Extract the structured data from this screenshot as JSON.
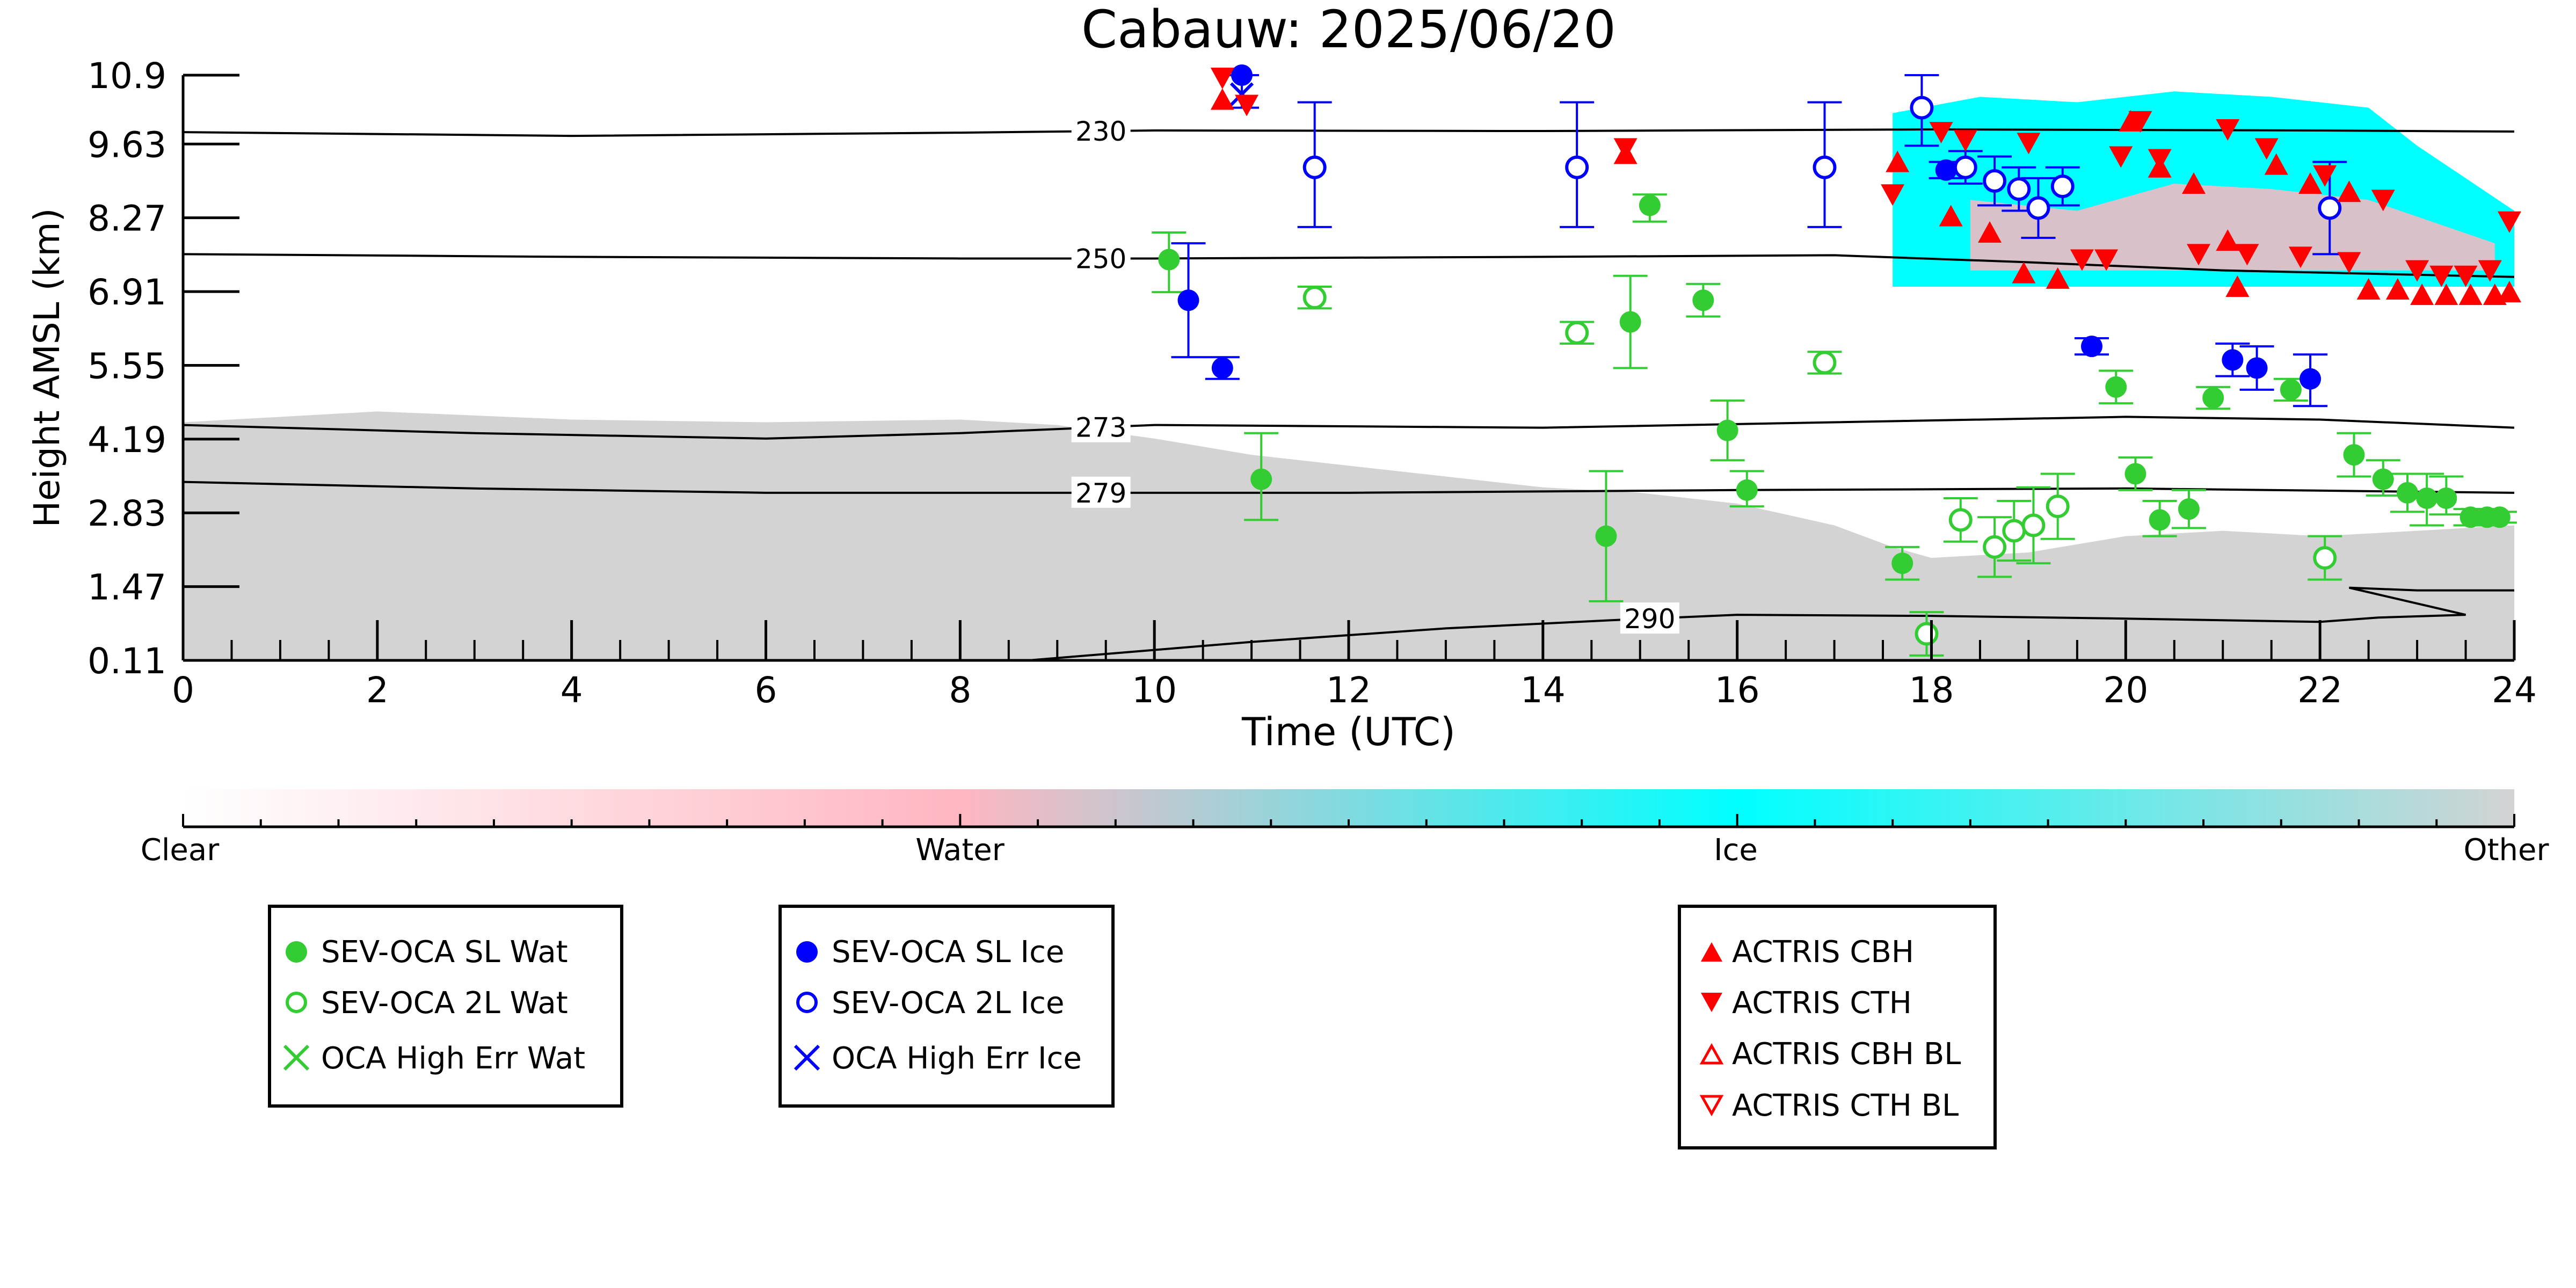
{
  "chart_data": {
    "type": "scatter",
    "title": "Cabauw: 2025/06/20",
    "xlabel": "Time (UTC)",
    "ylabel": "Height AMSL (km)",
    "xlim": [
      0,
      24
    ],
    "ylim": [
      0.11,
      10.9
    ],
    "x_ticks": [
      "0",
      "2",
      "4",
      "6",
      "8",
      "10",
      "12",
      "14",
      "16",
      "18",
      "20",
      "22",
      "24"
    ],
    "y_ticks": [
      "0.11",
      "1.47",
      "2.83",
      "4.19",
      "5.55",
      "6.91",
      "8.27",
      "9.63",
      "10.9"
    ],
    "isotherms": [
      {
        "label": "230",
        "label_x": 9.45,
        "points": [
          [
            0,
            9.85
          ],
          [
            4,
            9.78
          ],
          [
            8,
            9.84
          ],
          [
            10,
            9.88
          ],
          [
            14,
            9.87
          ],
          [
            18,
            9.9
          ],
          [
            22,
            9.88
          ],
          [
            24,
            9.86
          ]
        ]
      },
      {
        "label": "250",
        "label_x": 9.45,
        "points": [
          [
            0,
            7.6
          ],
          [
            4,
            7.55
          ],
          [
            8,
            7.52
          ],
          [
            10,
            7.52
          ],
          [
            14,
            7.55
          ],
          [
            17,
            7.58
          ],
          [
            19,
            7.45
          ],
          [
            21,
            7.3
          ],
          [
            24,
            7.18
          ]
        ]
      },
      {
        "label": "273",
        "label_x": 9.45,
        "points": [
          [
            0,
            4.45
          ],
          [
            3,
            4.3
          ],
          [
            6,
            4.2
          ],
          [
            8,
            4.3
          ],
          [
            10,
            4.45
          ],
          [
            14,
            4.4
          ],
          [
            17,
            4.5
          ],
          [
            20,
            4.6
          ],
          [
            22,
            4.55
          ],
          [
            24,
            4.4
          ]
        ]
      },
      {
        "label": "279",
        "label_x": 9.45,
        "points": [
          [
            0,
            3.4
          ],
          [
            3,
            3.28
          ],
          [
            6,
            3.2
          ],
          [
            9,
            3.2
          ],
          [
            12,
            3.2
          ],
          [
            16,
            3.25
          ],
          [
            20,
            3.28
          ],
          [
            24,
            3.2
          ]
        ]
      },
      {
        "label": "290",
        "label_x": 15.1,
        "points": [
          [
            8.7,
            0.11
          ],
          [
            11,
            0.45
          ],
          [
            13,
            0.7
          ],
          [
            14.7,
            0.85
          ],
          [
            16,
            0.95
          ],
          [
            18,
            0.93
          ],
          [
            20,
            0.88
          ],
          [
            22,
            0.82
          ],
          [
            22.6,
            0.9
          ],
          [
            23.5,
            0.95
          ],
          [
            22.3,
            1.45
          ],
          [
            23,
            1.4
          ],
          [
            24,
            1.4
          ]
        ]
      }
    ],
    "series": [
      {
        "name": "SEV-OCA SL Wat",
        "marker": "circle-filled",
        "color": "#33cc33",
        "points": [
          {
            "x": 10.15,
            "y": 7.5,
            "lo": 6.9,
            "hi": 8.0
          },
          {
            "x": 11.1,
            "y": 3.45,
            "lo": 2.7,
            "hi": 4.3
          },
          {
            "x": 14.65,
            "y": 2.4,
            "lo": 1.2,
            "hi": 3.6
          },
          {
            "x": 14.9,
            "y": 6.35,
            "lo": 5.5,
            "hi": 7.2
          },
          {
            "x": 15.1,
            "y": 8.5,
            "lo": 8.2,
            "hi": 8.7
          },
          {
            "x": 15.65,
            "y": 6.75,
            "lo": 6.45,
            "hi": 7.05
          },
          {
            "x": 15.9,
            "y": 4.35,
            "lo": 3.8,
            "hi": 4.9
          },
          {
            "x": 16.1,
            "y": 3.25,
            "lo": 2.95,
            "hi": 3.6
          },
          {
            "x": 17.7,
            "y": 1.9,
            "lo": 1.6,
            "hi": 2.2
          },
          {
            "x": 19.9,
            "y": 5.15,
            "lo": 4.85,
            "hi": 5.45
          },
          {
            "x": 20.1,
            "y": 3.55,
            "lo": 3.25,
            "hi": 3.85
          },
          {
            "x": 20.35,
            "y": 2.7,
            "lo": 2.4,
            "hi": 3.05
          },
          {
            "x": 20.65,
            "y": 2.9,
            "lo": 2.55,
            "hi": 3.25
          },
          {
            "x": 20.9,
            "y": 4.95,
            "lo": 4.75,
            "hi": 5.15
          },
          {
            "x": 21.7,
            "y": 5.1,
            "lo": 4.9,
            "hi": 5.3
          },
          {
            "x": 22.35,
            "y": 3.9,
            "lo": 3.5,
            "hi": 4.3
          },
          {
            "x": 22.65,
            "y": 3.45,
            "lo": 3.15,
            "hi": 3.8
          },
          {
            "x": 22.9,
            "y": 3.2,
            "lo": 2.85,
            "hi": 3.55
          },
          {
            "x": 23.1,
            "y": 3.1,
            "lo": 2.6,
            "hi": 3.55
          },
          {
            "x": 23.3,
            "y": 3.1,
            "lo": 2.8,
            "hi": 3.5
          },
          {
            "x": 23.55,
            "y": 2.75,
            "lo": 2.6,
            "hi": 2.9
          },
          {
            "x": 23.72,
            "y": 2.75,
            "lo": 2.6,
            "hi": 2.9
          },
          {
            "x": 23.85,
            "y": 2.75,
            "lo": 2.65,
            "hi": 2.85
          }
        ]
      },
      {
        "name": "SEV-OCA 2L Wat",
        "marker": "circle-open",
        "color": "#33cc33",
        "points": [
          {
            "x": 11.65,
            "y": 6.8,
            "lo": 6.6,
            "hi": 7.0
          },
          {
            "x": 14.35,
            "y": 6.15,
            "lo": 5.95,
            "hi": 6.35
          },
          {
            "x": 16.9,
            "y": 5.6,
            "lo": 5.4,
            "hi": 5.8
          },
          {
            "x": 17.95,
            "y": 0.6,
            "lo": 0.2,
            "hi": 1.0
          },
          {
            "x": 18.3,
            "y": 2.7,
            "lo": 2.3,
            "hi": 3.1
          },
          {
            "x": 18.65,
            "y": 2.2,
            "lo": 1.65,
            "hi": 2.75
          },
          {
            "x": 18.85,
            "y": 2.5,
            "lo": 1.95,
            "hi": 3.05
          },
          {
            "x": 19.05,
            "y": 2.6,
            "lo": 1.9,
            "hi": 3.3
          },
          {
            "x": 19.3,
            "y": 2.95,
            "lo": 2.35,
            "hi": 3.55
          },
          {
            "x": 22.05,
            "y": 2.0,
            "lo": 1.6,
            "hi": 2.4
          }
        ]
      },
      {
        "name": "OCA High Err Wat",
        "marker": "x",
        "color": "#33cc33",
        "points": []
      },
      {
        "name": "SEV-OCA SL Ice",
        "marker": "circle-filled",
        "color": "#0000ff",
        "points": [
          {
            "x": 10.35,
            "y": 6.75,
            "lo": 5.7,
            "hi": 7.8
          },
          {
            "x": 10.7,
            "y": 5.5,
            "lo": 5.3,
            "hi": 5.7
          },
          {
            "x": 10.9,
            "y": 10.9,
            "lo": 10.3,
            "hi": 10.9
          },
          {
            "x": 18.15,
            "y": 9.15,
            "lo": 9.0,
            "hi": 9.3
          },
          {
            "x": 19.65,
            "y": 5.9,
            "lo": 5.75,
            "hi": 6.05
          },
          {
            "x": 21.1,
            "y": 5.65,
            "lo": 5.35,
            "hi": 5.95
          },
          {
            "x": 21.35,
            "y": 5.5,
            "lo": 5.1,
            "hi": 5.9
          },
          {
            "x": 21.9,
            "y": 5.3,
            "lo": 4.8,
            "hi": 5.75
          }
        ]
      },
      {
        "name": "SEV-OCA 2L Ice",
        "marker": "circle-open",
        "color": "#0000ff",
        "points": [
          {
            "x": 11.65,
            "y": 9.2,
            "lo": 8.1,
            "hi": 10.4
          },
          {
            "x": 14.35,
            "y": 9.2,
            "lo": 8.1,
            "hi": 10.4
          },
          {
            "x": 16.9,
            "y": 9.2,
            "lo": 8.1,
            "hi": 10.4
          },
          {
            "x": 17.9,
            "y": 10.3,
            "lo": 9.6,
            "hi": 10.9
          },
          {
            "x": 18.35,
            "y": 9.2,
            "lo": 8.9,
            "hi": 9.5
          },
          {
            "x": 18.65,
            "y": 8.95,
            "lo": 8.5,
            "hi": 9.4
          },
          {
            "x": 18.9,
            "y": 8.8,
            "lo": 8.4,
            "hi": 9.2
          },
          {
            "x": 19.1,
            "y": 8.45,
            "lo": 7.9,
            "hi": 9.0
          },
          {
            "x": 19.35,
            "y": 8.85,
            "lo": 8.5,
            "hi": 9.2
          },
          {
            "x": 22.1,
            "y": 8.45,
            "lo": 7.6,
            "hi": 9.3
          }
        ]
      },
      {
        "name": "OCA High Err Ice",
        "marker": "x",
        "color": "#0000ff",
        "points": [
          {
            "x": 10.9,
            "y": 10.55
          }
        ]
      },
      {
        "name": "ACTRIS CBH",
        "marker": "triangle-up-filled",
        "color": "#ff0000",
        "points": [
          {
            "x": 10.7,
            "y": 10.45
          },
          {
            "x": 14.85,
            "y": 9.45
          },
          {
            "x": 17.65,
            "y": 9.3
          },
          {
            "x": 18.2,
            "y": 8.3
          },
          {
            "x": 18.6,
            "y": 8.0
          },
          {
            "x": 18.95,
            "y": 7.25
          },
          {
            "x": 19.3,
            "y": 7.15
          },
          {
            "x": 20.05,
            "y": 10.05
          },
          {
            "x": 20.35,
            "y": 9.2
          },
          {
            "x": 20.7,
            "y": 8.9
          },
          {
            "x": 21.05,
            "y": 7.85
          },
          {
            "x": 21.15,
            "y": 7.0
          },
          {
            "x": 21.55,
            "y": 9.25
          },
          {
            "x": 21.9,
            "y": 8.9
          },
          {
            "x": 22.3,
            "y": 8.75
          },
          {
            "x": 22.5,
            "y": 6.95
          },
          {
            "x": 22.8,
            "y": 6.95
          },
          {
            "x": 23.05,
            "y": 6.85
          },
          {
            "x": 23.3,
            "y": 6.85
          },
          {
            "x": 23.55,
            "y": 6.85
          },
          {
            "x": 23.8,
            "y": 6.85
          },
          {
            "x": 23.95,
            "y": 6.9
          }
        ]
      },
      {
        "name": "ACTRIS CTH",
        "marker": "triangle-down-filled",
        "color": "#ff0000",
        "points": [
          {
            "x": 10.7,
            "y": 10.85
          },
          {
            "x": 10.95,
            "y": 10.35
          },
          {
            "x": 14.85,
            "y": 9.55
          },
          {
            "x": 17.6,
            "y": 8.7
          },
          {
            "x": 18.1,
            "y": 9.85
          },
          {
            "x": 18.35,
            "y": 9.7
          },
          {
            "x": 19.0,
            "y": 9.65
          },
          {
            "x": 19.55,
            "y": 7.5
          },
          {
            "x": 19.8,
            "y": 7.5
          },
          {
            "x": 19.95,
            "y": 9.4
          },
          {
            "x": 20.15,
            "y": 10.05
          },
          {
            "x": 20.35,
            "y": 9.35
          },
          {
            "x": 20.75,
            "y": 7.6
          },
          {
            "x": 21.05,
            "y": 9.9
          },
          {
            "x": 21.25,
            "y": 7.6
          },
          {
            "x": 21.45,
            "y": 9.55
          },
          {
            "x": 21.8,
            "y": 7.55
          },
          {
            "x": 22.05,
            "y": 9.05
          },
          {
            "x": 22.3,
            "y": 7.45
          },
          {
            "x": 22.65,
            "y": 8.6
          },
          {
            "x": 23.0,
            "y": 7.3
          },
          {
            "x": 23.25,
            "y": 7.2
          },
          {
            "x": 23.5,
            "y": 7.2
          },
          {
            "x": 23.75,
            "y": 7.3
          },
          {
            "x": 23.95,
            "y": 8.2
          }
        ]
      },
      {
        "name": "ACTRIS CBH BL",
        "marker": "triangle-up-open",
        "color": "#ff0000",
        "points": []
      },
      {
        "name": "ACTRIS CTH BL",
        "marker": "triangle-down-open",
        "color": "#ff0000",
        "points": []
      }
    ],
    "background_classes": [
      {
        "label": "Clear",
        "color": "#ffffff"
      },
      {
        "label": "Water",
        "color": "#ffb6c1"
      },
      {
        "label": "Ice",
        "color": "#00ffff"
      },
      {
        "label": "Other",
        "color": "#d3d3d3"
      }
    ],
    "background_regions": [
      {
        "class": "Other",
        "x0": 0,
        "x1": 24,
        "y_lo": 0.11,
        "top": [
          [
            0,
            4.5
          ],
          [
            2,
            4.7
          ],
          [
            4,
            4.55
          ],
          [
            6,
            4.5
          ],
          [
            8,
            4.55
          ],
          [
            9,
            4.45
          ],
          [
            10,
            4.2
          ],
          [
            11,
            3.9
          ],
          [
            12,
            3.7
          ],
          [
            13,
            3.5
          ],
          [
            14,
            3.3
          ],
          [
            15,
            3.2
          ],
          [
            16,
            3.0
          ],
          [
            17,
            2.6
          ],
          [
            17.6,
            2.2
          ],
          [
            18,
            2.0
          ],
          [
            19,
            2.1
          ],
          [
            20,
            2.4
          ],
          [
            21,
            2.5
          ],
          [
            22,
            2.4
          ],
          [
            23,
            2.5
          ],
          [
            24,
            2.6
          ]
        ]
      },
      {
        "class": "Ice",
        "x0": 17.6,
        "x1": 24,
        "y_lo": 7.0,
        "top": [
          [
            17.6,
            10.2
          ],
          [
            18.5,
            10.5
          ],
          [
            19.5,
            10.4
          ],
          [
            20.5,
            10.6
          ],
          [
            21.5,
            10.5
          ],
          [
            22.5,
            10.3
          ],
          [
            23,
            9.6
          ],
          [
            24,
            8.4
          ]
        ]
      },
      {
        "class": "Water",
        "x0": 18.4,
        "x1": 23.8,
        "y_lo": 7.3,
        "top": [
          [
            18.4,
            8.6
          ],
          [
            19.5,
            8.4
          ],
          [
            20.5,
            8.9
          ],
          [
            21.5,
            8.8
          ],
          [
            22.5,
            8.6
          ],
          [
            23.8,
            7.8
          ]
        ]
      }
    ],
    "colorbar": {
      "labels": [
        "Clear",
        "Water",
        "Ice",
        "Other"
      ]
    },
    "legends": [
      {
        "placement": "bottom-left",
        "entries": [
          "SEV-OCA SL Wat",
          "SEV-OCA 2L Wat",
          "OCA High Err Wat"
        ]
      },
      {
        "placement": "bottom-center-left",
        "entries": [
          "SEV-OCA SL Ice",
          "SEV-OCA 2L Ice",
          "OCA High Err Ice"
        ]
      },
      {
        "placement": "bottom-right",
        "entries": [
          "ACTRIS CBH",
          "ACTRIS CTH",
          "ACTRIS CBH BL",
          "ACTRIS CTH BL"
        ]
      }
    ],
    "grid": false
  }
}
